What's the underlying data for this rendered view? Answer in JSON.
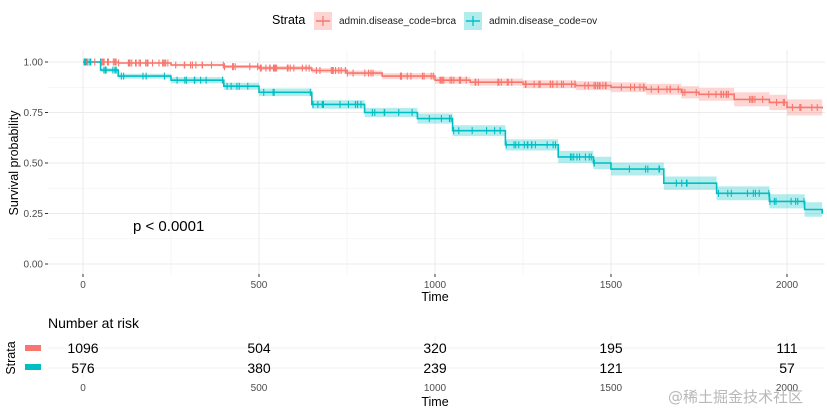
{
  "chart_data": {
    "type": "line",
    "subtype": "kaplan-meier",
    "title": "",
    "xlabel": "Time",
    "ylabel": "Survival probability",
    "xlim": [
      0,
      2100
    ],
    "ylim": [
      0,
      1
    ],
    "x_ticks": [
      0,
      500,
      1000,
      1500,
      2000
    ],
    "y_ticks": [
      0,
      0.25,
      0.5,
      0.75,
      1.0
    ],
    "y_tick_labels": [
      "0.00",
      "0.25",
      "0.50",
      "0.75",
      "1.00"
    ],
    "grid": true,
    "legend": {
      "title": "Strata",
      "placement": "top",
      "entries": [
        "admin.disease_code=brca",
        "admin.disease_code=ov"
      ]
    },
    "annotation": "p < 0.0001",
    "series": [
      {
        "name": "admin.disease_code=brca",
        "color": "#F8766D",
        "x": [
          0,
          100,
          250,
          400,
          500,
          650,
          750,
          850,
          1000,
          1100,
          1250,
          1400,
          1500,
          1600,
          1700,
          1750,
          1850,
          1950,
          2000,
          2100
        ],
        "y": [
          1.0,
          0.995,
          0.985,
          0.977,
          0.97,
          0.958,
          0.945,
          0.93,
          0.91,
          0.9,
          0.89,
          0.883,
          0.875,
          0.865,
          0.85,
          0.84,
          0.815,
          0.8,
          0.775,
          0.77
        ],
        "ci_width": [
          0.0,
          0.004,
          0.006,
          0.008,
          0.01,
          0.012,
          0.013,
          0.015,
          0.017,
          0.018,
          0.02,
          0.022,
          0.024,
          0.027,
          0.03,
          0.032,
          0.035,
          0.038,
          0.04,
          0.042
        ]
      },
      {
        "name": "admin.disease_code=ov",
        "color": "#00BFC4",
        "x": [
          0,
          50,
          100,
          250,
          400,
          500,
          650,
          800,
          950,
          1050,
          1200,
          1350,
          1450,
          1500,
          1650,
          1800,
          1950,
          2050,
          2100
        ],
        "y": [
          1.0,
          0.96,
          0.93,
          0.91,
          0.88,
          0.85,
          0.79,
          0.75,
          0.72,
          0.66,
          0.59,
          0.53,
          0.5,
          0.47,
          0.4,
          0.35,
          0.31,
          0.27,
          0.25
        ],
        "ci_width": [
          0.0,
          0.01,
          0.012,
          0.015,
          0.017,
          0.019,
          0.021,
          0.023,
          0.025,
          0.027,
          0.028,
          0.03,
          0.031,
          0.032,
          0.033,
          0.034,
          0.035,
          0.036,
          0.037
        ]
      }
    ]
  },
  "risk_table": {
    "title": "Number at risk",
    "y_label": "Strata",
    "x_label": "Time",
    "x_ticks": [
      0,
      500,
      1000,
      1500,
      2000
    ],
    "rows": [
      {
        "name": "admin.disease_code=brca",
        "color": "#F8766D",
        "values": [
          1096,
          504,
          320,
          195,
          111
        ]
      },
      {
        "name": "admin.disease_code=ov",
        "color": "#00BFC4",
        "values": [
          576,
          380,
          239,
          121,
          57
        ]
      }
    ]
  },
  "watermark": "@稀土掘金技术社区"
}
